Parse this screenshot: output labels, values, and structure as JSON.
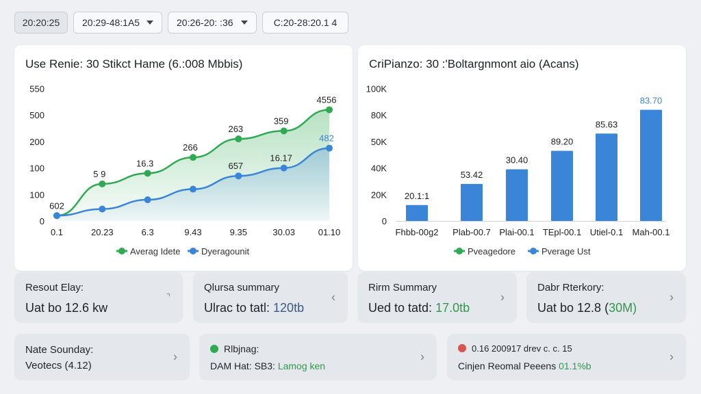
{
  "toolbar": {
    "chips": [
      "20:20:25",
      "20:29-48:1A5",
      "20:26-20: :36",
      "C:20-28:20.1 4"
    ]
  },
  "left_chart": {
    "title": "Use Renie: 30 Stikct Hame (6.:008 Mbbis)",
    "legend": [
      {
        "label": "Averag Idete",
        "color": "#2faa52"
      },
      {
        "label": "Dyeragounit",
        "color": "#3b85d8"
      }
    ]
  },
  "right_chart": {
    "title": "CriPianzo: 30 :'Boltargnmont aio (Acans)",
    "legend": [
      {
        "label": "Pveagedore",
        "color": "#2faa52"
      },
      {
        "label": "Pverage Ust",
        "color": "#3b85d8"
      }
    ]
  },
  "chart_data": [
    {
      "type": "line",
      "title": "Use Renie: 30 Stikct Hame (6.:008 Mbbis)",
      "xlabel": "",
      "ylabel": "",
      "y_ticks": [
        "0",
        "100",
        "100",
        "200",
        "500",
        "550"
      ],
      "x_ticks": [
        "0.1",
        "20.23",
        "6.3",
        "9.43",
        "9.35",
        "30.03",
        "01.10"
      ],
      "series": [
        {
          "name": "Averag Idete",
          "color": "#2faa52",
          "y_ticks_index": [
            0.2,
            1.4,
            1.8,
            2.4,
            3.1,
            3.4,
            4.2
          ],
          "labels": [
            "602",
            "5 9",
            "16.3",
            "266",
            "263",
            "359",
            "4556"
          ]
        },
        {
          "name": "Dyeragounit",
          "color": "#3b85d8",
          "y_ticks_index": [
            0.2,
            0.45,
            0.8,
            1.2,
            1.7,
            2.0,
            2.75
          ],
          "labels": [
            "",
            "",
            "",
            "",
            "657",
            "16.17",
            "482"
          ]
        }
      ]
    },
    {
      "type": "bar",
      "title": "CriPianzo: 30 :'Boltargnmont aio (Acans)",
      "categories": [
        "Fhbb-00g2",
        "Plab-00.7",
        "Plai-00.1",
        "TEpl-00.1",
        "Utiel-0.1",
        "Mah-00.1"
      ],
      "y_ticks": [
        "0",
        "20K",
        "40K",
        "50K",
        "80K",
        "100K"
      ],
      "series": [
        {
          "name": "Pverage Ust",
          "color": "#3b85d8",
          "y_ticks_index": [
            0.6,
            1.4,
            1.95,
            2.65,
            3.3,
            4.2
          ],
          "labels": [
            "20.1:1",
            "53.42",
            "30.40",
            "89.20",
            "85.63",
            "83.70"
          ]
        }
      ]
    }
  ],
  "summary_row1": [
    {
      "title": "Resout Elay:",
      "value": "Uat bo 12.6 kw",
      "value_tail": ""
    },
    {
      "title": "Qlursa summary",
      "value": "Ulrac to tatl: ",
      "value_tail": "120tb"
    },
    {
      "title": "Rirm Summary",
      "value": "Ued to tatd: ",
      "value_tail": "17.0tb"
    },
    {
      "title": "Dabr Rterkory:",
      "value": "Uat bo 12.8 (",
      "value_tail": "30M)"
    }
  ],
  "summary_row2": [
    {
      "title": "Nate Sounday:",
      "value": "Veotecs (4.12)"
    },
    {
      "title": "Rlbjnag:",
      "value": "DAM Hat: SB3: ",
      "value_tail": "Lamog ken"
    },
    {
      "title": "0.16 200917 drev c. c. 15",
      "value": "Cinjen Reomal Peeens ",
      "value_tail": "01.1%b"
    }
  ]
}
